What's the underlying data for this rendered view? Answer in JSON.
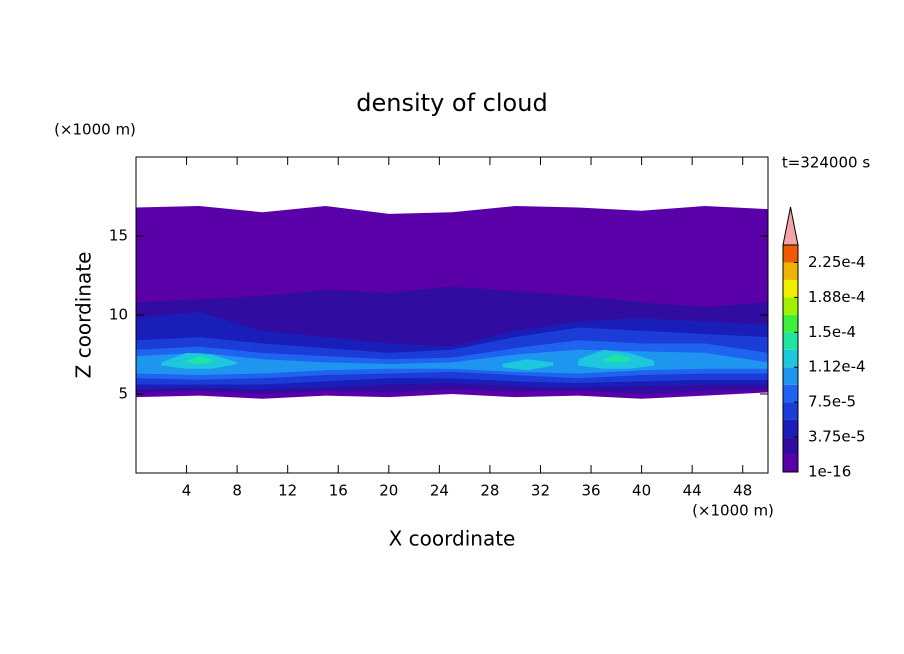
{
  "chart_data": {
    "type": "contour",
    "title": "density of cloud",
    "xlabel": "X coordinate",
    "ylabel": "Z coordinate",
    "xunit": "(×1000 m)",
    "yunit": "(×1000 m)",
    "annotation": "t=324000 s",
    "xlim": [
      0,
      50
    ],
    "ylim": [
      0,
      20
    ],
    "xticks": [
      4,
      8,
      12,
      16,
      20,
      24,
      28,
      32,
      36,
      40,
      44,
      48
    ],
    "yticks": [
      5,
      10,
      15
    ],
    "colorbar": {
      "clim": [
        1e-16,
        0.00024375
      ],
      "levels": [
        1e-16,
        1.875e-05,
        3.75e-05,
        5.625e-05,
        7.5e-05,
        9.375e-05,
        0.0001125,
        0.00013125,
        0.00015,
        0.00016875,
        0.0001875,
        0.00020625,
        0.000225
      ],
      "colors": [
        "#5a00a8",
        "#300ca0",
        "#1a1eb8",
        "#1c3cd8",
        "#1e64f0",
        "#1e96f0",
        "#1ec8dc",
        "#1ee6a0",
        "#3cf03c",
        "#a0f000",
        "#f0f000",
        "#f0b400",
        "#f05a00"
      ],
      "extend_color": "#f4a4a4",
      "ticks": [
        {
          "value": 1e-16,
          "label": "1e-16"
        },
        {
          "value": 3.75e-05,
          "label": "3.75e-5"
        },
        {
          "value": 7.5e-05,
          "label": "7.5e-5"
        },
        {
          "value": 0.0001125,
          "label": "1.12e-4"
        },
        {
          "value": 0.00015,
          "label": "1.5e-4"
        },
        {
          "value": 0.0001875,
          "label": "1.88e-4"
        },
        {
          "value": 0.000225,
          "label": "2.25e-4"
        }
      ]
    },
    "layers": [
      {
        "level": 1e-16,
        "x": [
          0,
          5,
          10,
          15,
          20,
          25,
          30,
          35,
          40,
          45,
          50
        ],
        "bottom": [
          4.8,
          4.9,
          4.7,
          4.9,
          4.8,
          5.0,
          4.8,
          4.9,
          4.7,
          4.9,
          5.1
        ],
        "top": [
          16.8,
          16.9,
          16.5,
          16.9,
          16.4,
          16.5,
          16.9,
          16.8,
          16.6,
          16.9,
          16.7
        ]
      },
      {
        "level": 1.875e-05,
        "x": [
          0,
          5,
          10,
          15,
          20,
          25,
          30,
          35,
          40,
          45,
          50
        ],
        "bottom": [
          5.1,
          5.2,
          5.0,
          5.2,
          5.1,
          5.3,
          5.2,
          5.2,
          5.0,
          5.2,
          5.3
        ],
        "top": [
          10.8,
          11,
          11.2,
          11.6,
          11.4,
          11.8,
          11.5,
          11.2,
          10.8,
          10.5,
          10.8
        ]
      },
      {
        "level": 3.75e-05,
        "x": [
          0,
          5,
          10,
          15,
          20,
          25,
          30,
          35,
          40,
          45,
          50
        ],
        "bottom": [
          5.3,
          5.4,
          5.3,
          5.4,
          5.6,
          5.7,
          5.5,
          5.4,
          5.5,
          5.6,
          5.6
        ],
        "top": [
          9.8,
          10.2,
          9.0,
          8.6,
          8.2,
          8.0,
          9.0,
          9.6,
          9.8,
          9.6,
          9.4
        ]
      },
      {
        "level": 5.625e-05,
        "x": [
          0,
          5,
          10,
          15,
          20,
          25,
          30,
          35,
          40,
          45,
          50
        ],
        "bottom": [
          5.6,
          5.6,
          5.6,
          5.8,
          6.0,
          6.0,
          5.8,
          5.7,
          5.8,
          5.9,
          5.9
        ],
        "top": [
          8.4,
          8.6,
          8.2,
          7.9,
          7.6,
          7.8,
          8.6,
          9.2,
          9.0,
          8.8,
          8.6
        ]
      },
      {
        "level": 7.5e-05,
        "x": [
          0,
          5,
          10,
          15,
          20,
          25,
          30,
          35,
          40,
          45,
          50
        ],
        "bottom": [
          6.0,
          5.9,
          6.0,
          6.2,
          6.3,
          6.4,
          6.2,
          6.0,
          6.2,
          6.3,
          6.3
        ],
        "top": [
          7.8,
          8.0,
          7.6,
          7.4,
          7.2,
          7.3,
          7.9,
          8.4,
          8.2,
          8.2,
          7.6
        ]
      },
      {
        "level": 9.375e-05,
        "x": [
          0,
          5,
          10,
          15,
          20,
          25,
          30,
          35,
          40,
          45,
          50
        ],
        "bottom": [
          6.3,
          6.2,
          6.3,
          6.5,
          6.6,
          6.6,
          6.4,
          6.3,
          6.5,
          6.6,
          6.6
        ],
        "top": [
          7.4,
          7.6,
          7.2,
          7.0,
          6.9,
          7.0,
          7.5,
          7.8,
          7.7,
          7.6,
          7.0
        ]
      },
      {
        "level": 0.0001125,
        "x": [
          2,
          4,
          6,
          8
        ],
        "bottom": [
          6.8,
          6.6,
          6.6,
          6.9
        ],
        "top": [
          7.0,
          7.6,
          7.5,
          7.0
        ]
      },
      {
        "level": 0.0001125,
        "x": [
          29,
          31,
          33
        ],
        "bottom": [
          6.7,
          6.5,
          6.8
        ],
        "top": [
          6.9,
          7.2,
          7.0
        ]
      },
      {
        "level": 0.0001125,
        "x": [
          35,
          37,
          39,
          41
        ],
        "bottom": [
          6.8,
          6.6,
          6.6,
          6.8
        ],
        "top": [
          7.2,
          7.8,
          7.6,
          7.1
        ]
      },
      {
        "level": 0.00013125,
        "x": [
          4,
          5,
          6
        ],
        "bottom": [
          7.0,
          6.9,
          7.0
        ],
        "top": [
          7.1,
          7.4,
          7.2
        ]
      },
      {
        "level": 0.00013125,
        "x": [
          37,
          38,
          39
        ],
        "bottom": [
          7.1,
          7.0,
          7.1
        ],
        "top": [
          7.2,
          7.5,
          7.3
        ]
      }
    ]
  }
}
